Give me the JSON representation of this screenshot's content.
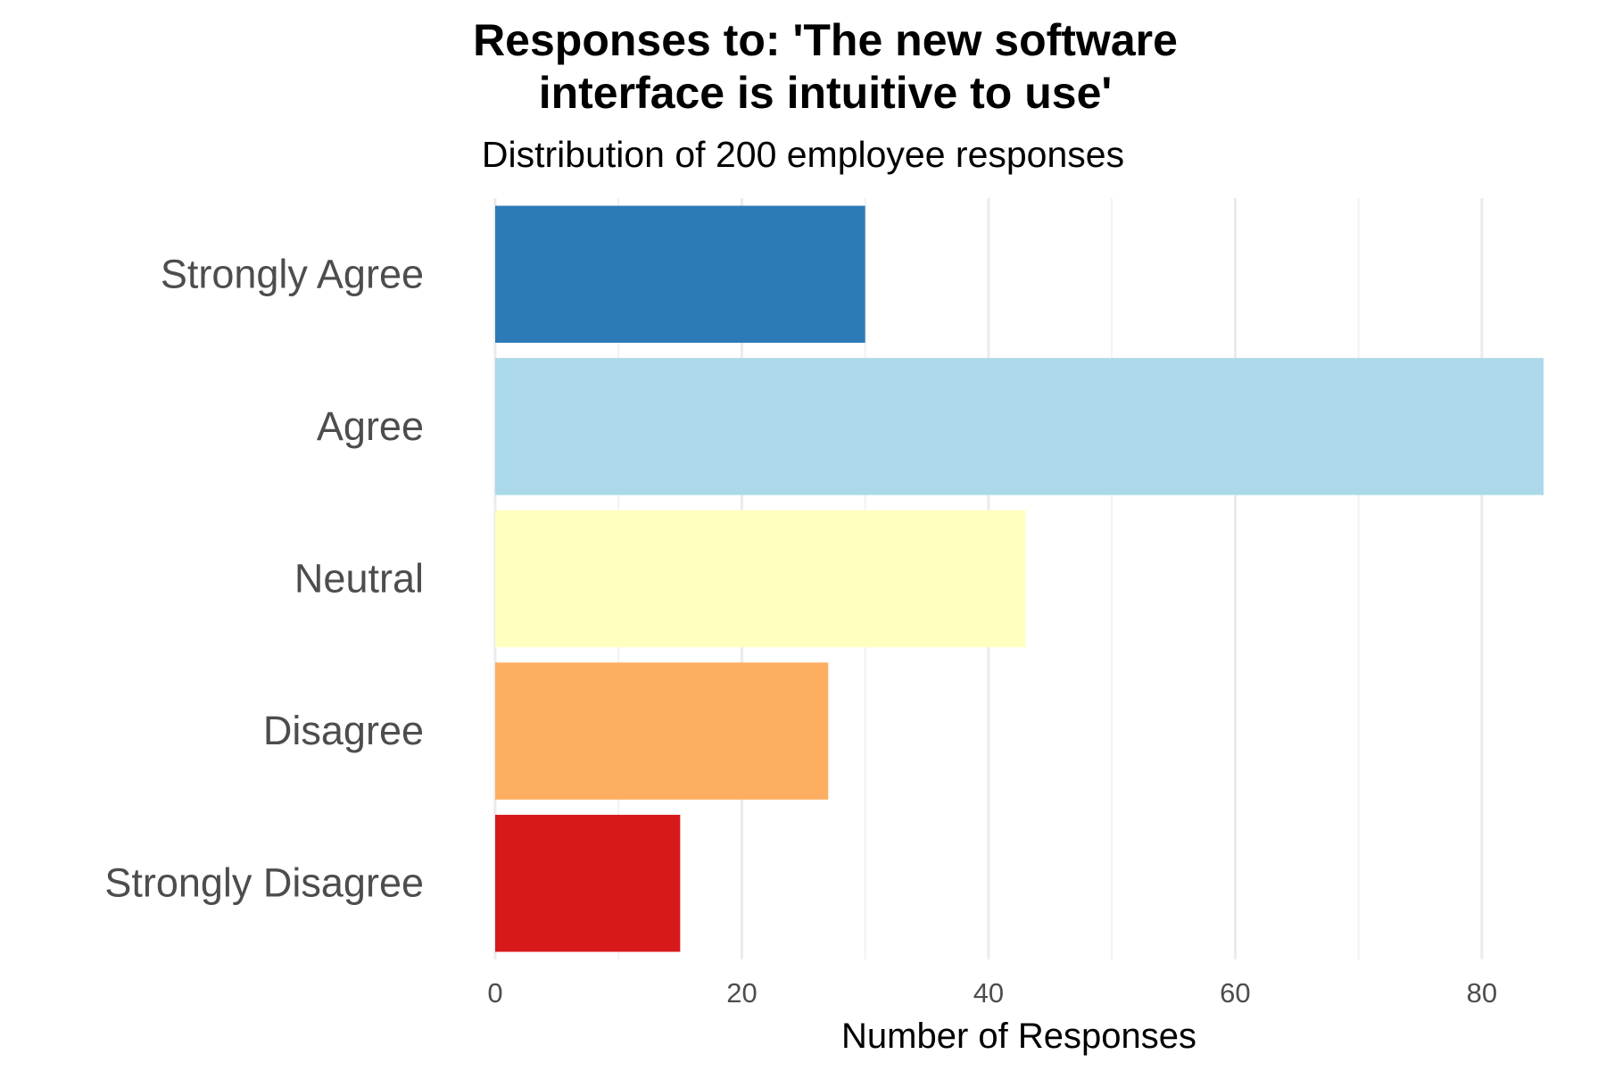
{
  "chart_data": {
    "type": "bar",
    "orientation": "horizontal",
    "title": "Responses to: 'The new software interface is intuitive to use'",
    "title_lines": [
      "Responses to: 'The new software",
      "interface is intuitive to use'"
    ],
    "subtitle": "Distribution of 200 employee responses",
    "xlabel": "Number of Responses",
    "ylabel": "",
    "categories": [
      "Strongly Agree",
      "Agree",
      "Neutral",
      "Disagree",
      "Strongly Disagree"
    ],
    "values": [
      30,
      85,
      43,
      27,
      15
    ],
    "colors": [
      "#2c7bb6",
      "#abd9e9",
      "#ffffbf",
      "#fdae61",
      "#d7191c"
    ],
    "xlim": [
      0,
      85
    ],
    "xticks": [
      0,
      20,
      40,
      60,
      80
    ],
    "grid": true,
    "legend": "none"
  }
}
